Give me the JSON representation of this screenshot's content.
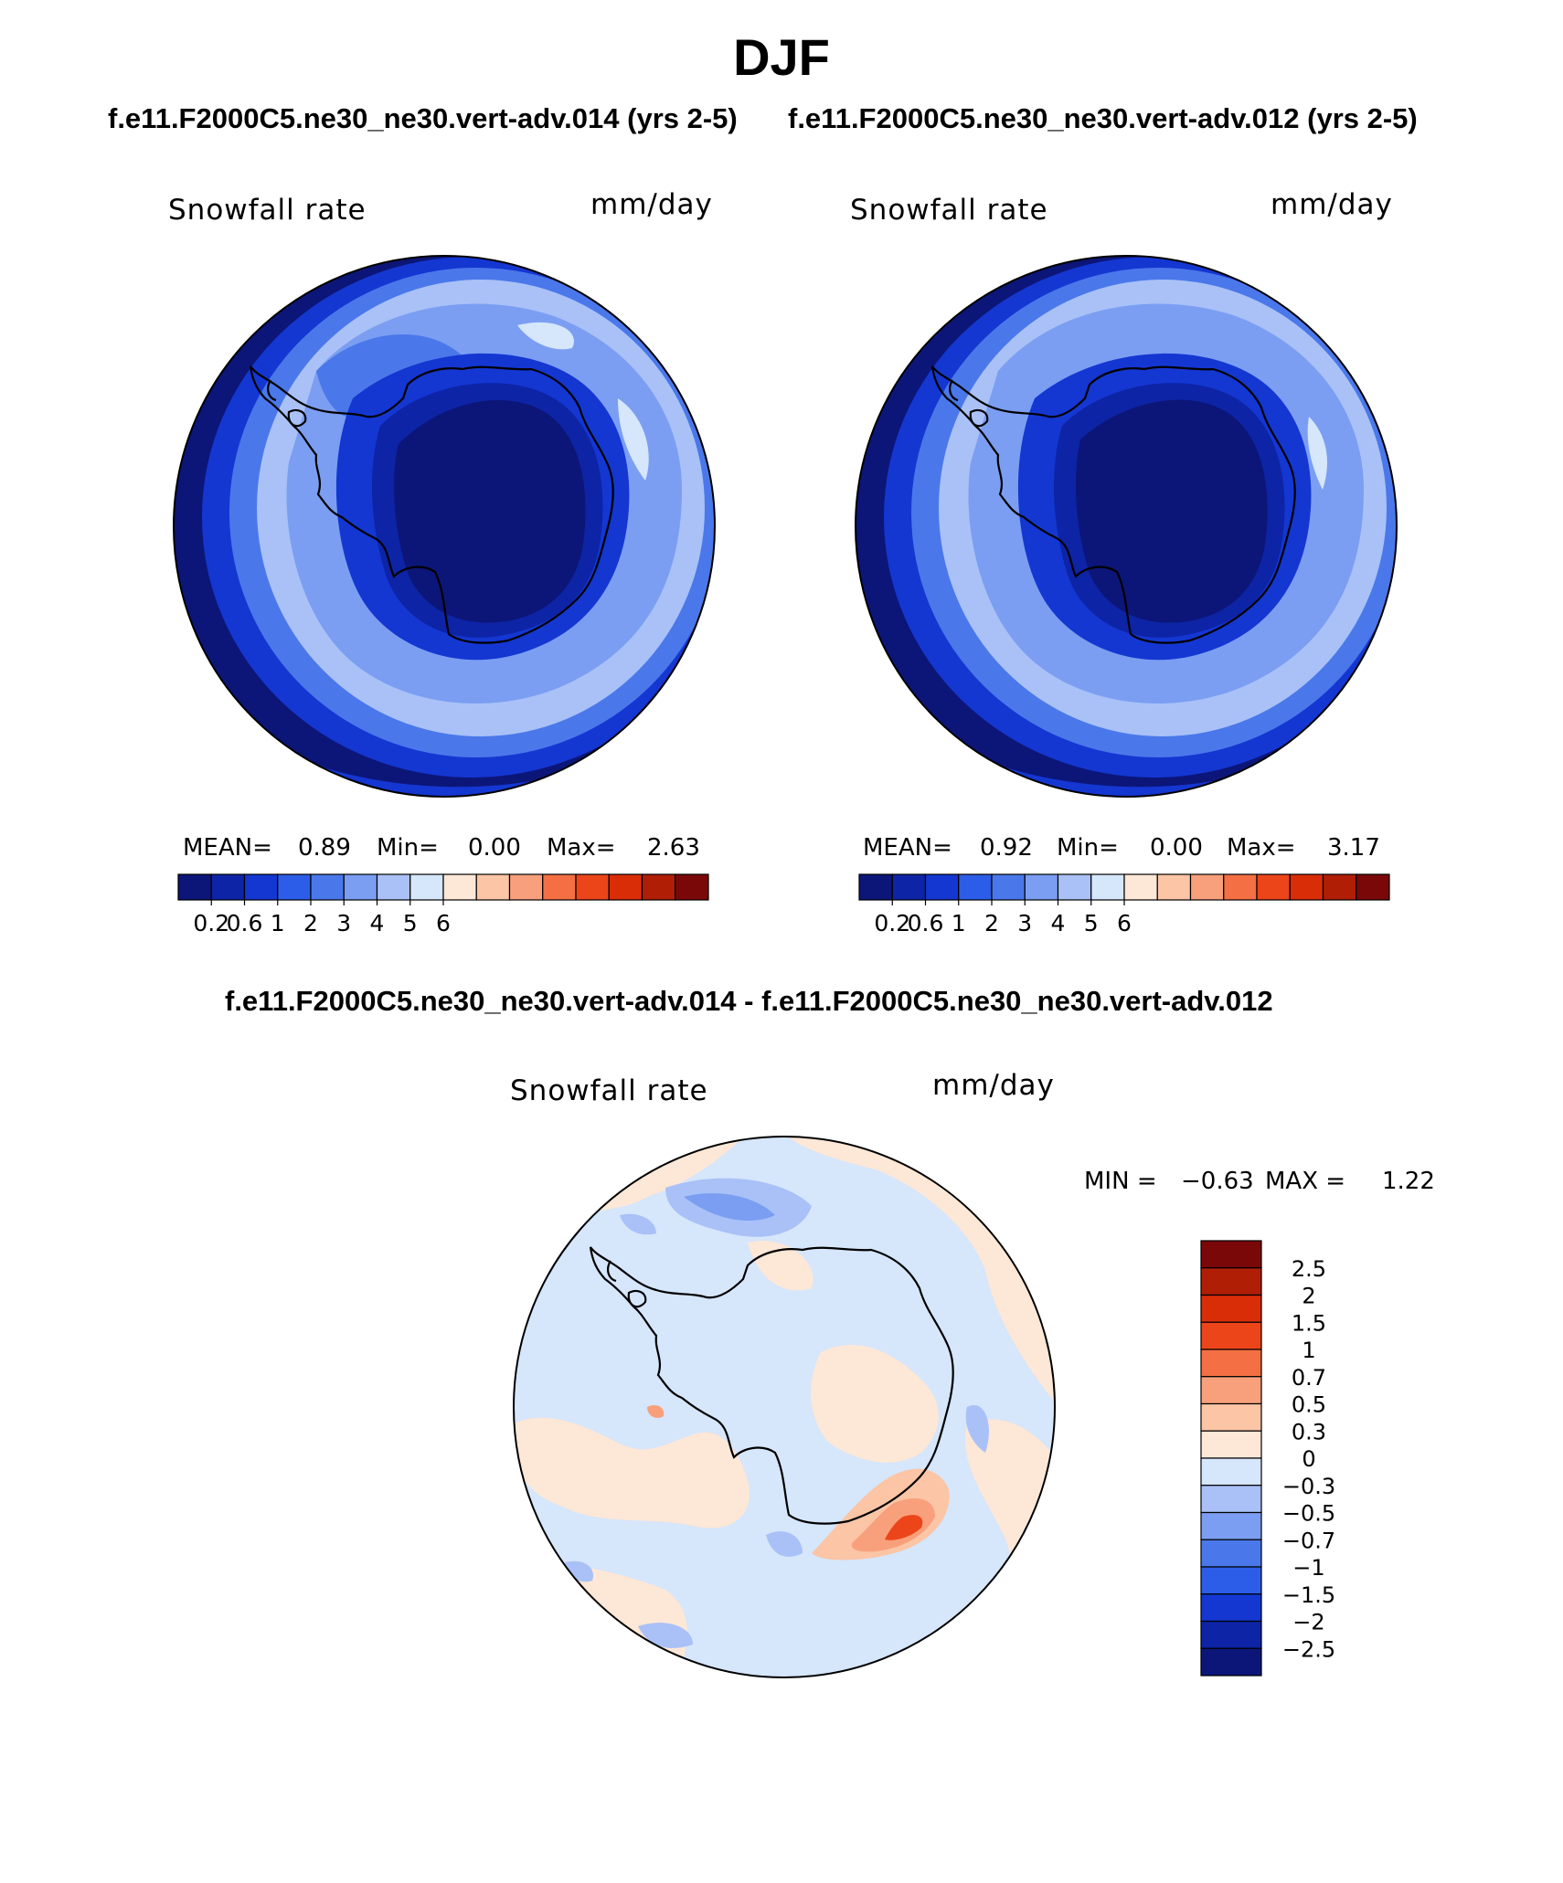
{
  "title": "DJF",
  "panel_left": {
    "case_title": "f.e11.F2000C5.ne30_ne30.vert-adv.014 (yrs 2-5)",
    "variable": "Snowfall rate",
    "units": "mm/day",
    "mean_label": "MEAN=",
    "mean_value": "0.89",
    "min_label": "Min=",
    "min_value": "0.00",
    "max_label": "Max=",
    "max_value": "2.63"
  },
  "panel_right": {
    "case_title": "f.e11.F2000C5.ne30_ne30.vert-adv.012 (yrs 2-5)",
    "variable": "Snowfall rate",
    "units": "mm/day",
    "mean_label": "MEAN=",
    "mean_value": "0.92",
    "min_label": "Min=",
    "min_value": "0.00",
    "max_label": "Max=",
    "max_value": "3.17"
  },
  "panel_diff": {
    "case_title": "f.e11.F2000C5.ne30_ne30.vert-adv.014 - f.e11.F2000C5.ne30_ne30.vert-adv.012",
    "variable": "Snowfall rate",
    "units": "mm/day",
    "min_label": "MIN =",
    "min_value": "−0.63",
    "max_label": "MAX =",
    "max_value": "1.22"
  },
  "chart_data": [
    {
      "type": "heatmap",
      "projection": "south polar stereographic",
      "title": "Snowfall rate",
      "units": "mm/day",
      "case": "f.e11.F2000C5.ne30_ne30.vert-adv.014 (yrs 2-5)",
      "stats": {
        "mean": 0.89,
        "min": 0.0,
        "max": 2.63
      },
      "contour_levels": [
        "0.2",
        "0.6",
        "1",
        "2",
        "3",
        "4",
        "5",
        "6"
      ],
      "colorbar_colors": [
        "#0c1678",
        "#0d24a6",
        "#1437d2",
        "#2c5de8",
        "#4a78ea",
        "#7b9ef2",
        "#a9c1f7",
        "#d6e6fb",
        "#fde7d6",
        "#fbc5a6",
        "#f8a07c",
        "#f46f43",
        "#ec4519",
        "#d92d08",
        "#b01e06",
        "#7a0808"
      ]
    },
    {
      "type": "heatmap",
      "projection": "south polar stereographic",
      "title": "Snowfall rate",
      "units": "mm/day",
      "case": "f.e11.F2000C5.ne30_ne30.vert-adv.012 (yrs 2-5)",
      "stats": {
        "mean": 0.92,
        "min": 0.0,
        "max": 3.17
      },
      "contour_levels": [
        "0.2",
        "0.6",
        "1",
        "2",
        "3",
        "4",
        "5",
        "6"
      ],
      "colorbar_colors": [
        "#0c1678",
        "#0d24a6",
        "#1437d2",
        "#2c5de8",
        "#4a78ea",
        "#7b9ef2",
        "#a9c1f7",
        "#d6e6fb",
        "#fde7d6",
        "#fbc5a6",
        "#f8a07c",
        "#f46f43",
        "#ec4519",
        "#d92d08",
        "#b01e06",
        "#7a0808"
      ]
    },
    {
      "type": "heatmap",
      "projection": "south polar stereographic",
      "title": "Snowfall rate",
      "units": "mm/day",
      "case": "f.e11.F2000C5.ne30_ne30.vert-adv.014 - f.e11.F2000C5.ne30_ne30.vert-adv.012",
      "stats": {
        "min": -0.63,
        "max": 1.22
      },
      "contour_levels": [
        "2.5",
        "2",
        "1.5",
        "1",
        "0.7",
        "0.5",
        "0.3",
        "0",
        "−0.3",
        "−0.5",
        "−0.7",
        "−1",
        "−1.5",
        "−2",
        "−2.5"
      ],
      "colorbar_colors": [
        "#7a0808",
        "#b01e06",
        "#d92d08",
        "#ec4519",
        "#f46f43",
        "#f8a07c",
        "#fbc5a6",
        "#fde7d6",
        "#d6e6fb",
        "#a9c1f7",
        "#7b9ef2",
        "#4a78ea",
        "#2c5de8",
        "#1437d2",
        "#0d24a6",
        "#0c1678"
      ]
    }
  ]
}
